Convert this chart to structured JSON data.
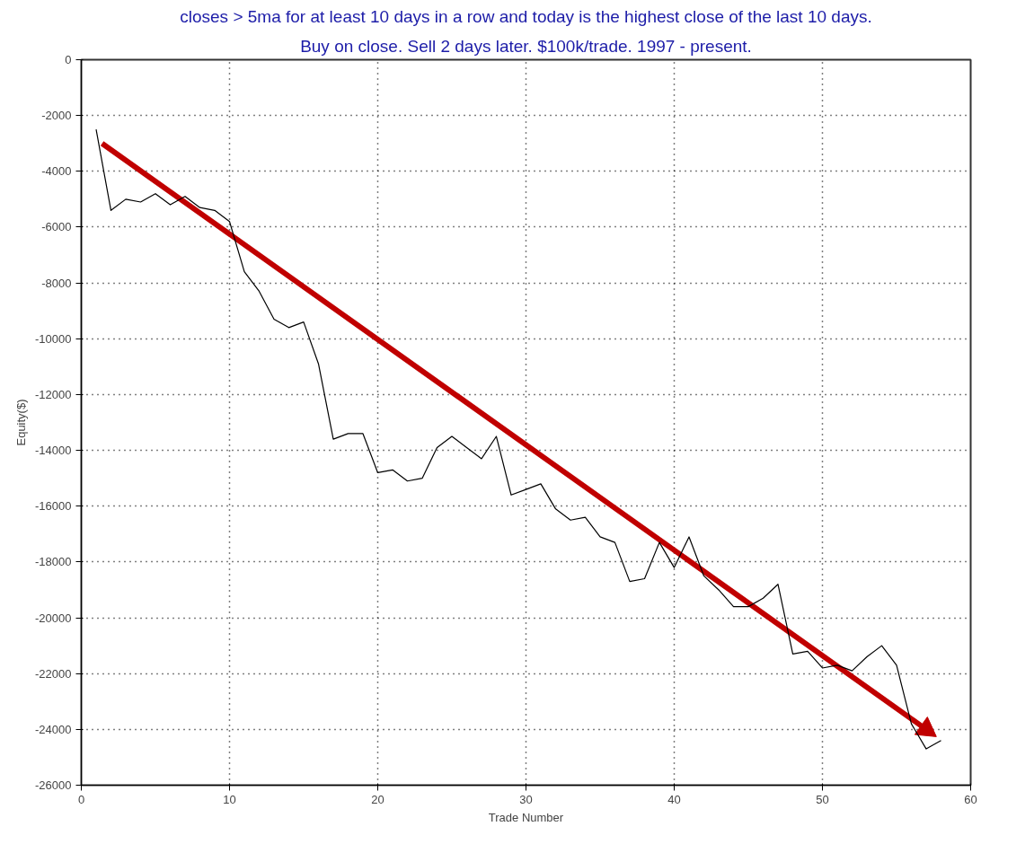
{
  "chart_data": {
    "type": "line",
    "title": "closes > 5ma for at least 10 days in a row and today is the highest close of the last 10 days.",
    "subtitle": "Buy on close. Sell 2 days later. $100k/trade. 1997 - present.",
    "xlabel": "Trade Number",
    "ylabel": "Equity($)",
    "x": [
      1,
      2,
      3,
      4,
      5,
      6,
      7,
      8,
      9,
      10,
      11,
      12,
      13,
      14,
      15,
      16,
      17,
      18,
      19,
      20,
      21,
      22,
      23,
      24,
      25,
      26,
      27,
      28,
      29,
      30,
      31,
      32,
      33,
      34,
      35,
      36,
      37,
      38,
      39,
      40,
      41,
      42,
      43,
      44,
      45,
      46,
      47,
      48,
      49,
      50,
      51,
      52,
      53,
      54,
      55,
      56,
      57,
      58
    ],
    "series": [
      {
        "color": "#000000",
        "values": [
          -2500,
          -5400,
          -5000,
          -5100,
          -4800,
          -5200,
          -4900,
          -5300,
          -5400,
          -5800,
          -7600,
          -8300,
          -9300,
          -9600,
          -9400,
          -10900,
          -13600,
          -13400,
          -13400,
          -14800,
          -14700,
          -15100,
          -15000,
          -13900,
          -13500,
          -13900,
          -14300,
          -13500,
          -15600,
          -15400,
          -15200,
          -16100,
          -16500,
          -16400,
          -17100,
          -17300,
          -18700,
          -18600,
          -17300,
          -18200,
          -17100,
          -18500,
          -19000,
          -19600,
          -19600,
          -19300,
          -18800,
          -21300,
          -21200,
          -21800,
          -21700,
          -21900,
          -21400,
          -21000,
          -21700,
          -23800,
          -24700,
          -24400
        ]
      },
      {
        "type": "line",
        "color": "#c00000",
        "marker": "triangle",
        "x": [
          1.4,
          57.0
        ],
        "values": [
          -3000,
          -24000
        ]
      }
    ],
    "xlim": [
      0,
      60
    ],
    "xticks": [
      0,
      10,
      20,
      30,
      40,
      50,
      60
    ],
    "ylim": [
      -26000,
      0
    ],
    "yticks": [
      0,
      -2000,
      -4000,
      -6000,
      -8000,
      -10000,
      -12000,
      -14000,
      -16000,
      -18000,
      -20000,
      -22000,
      -24000,
      -26000
    ],
    "grid": true,
    "marker": "none",
    "line_style": "solid"
  }
}
